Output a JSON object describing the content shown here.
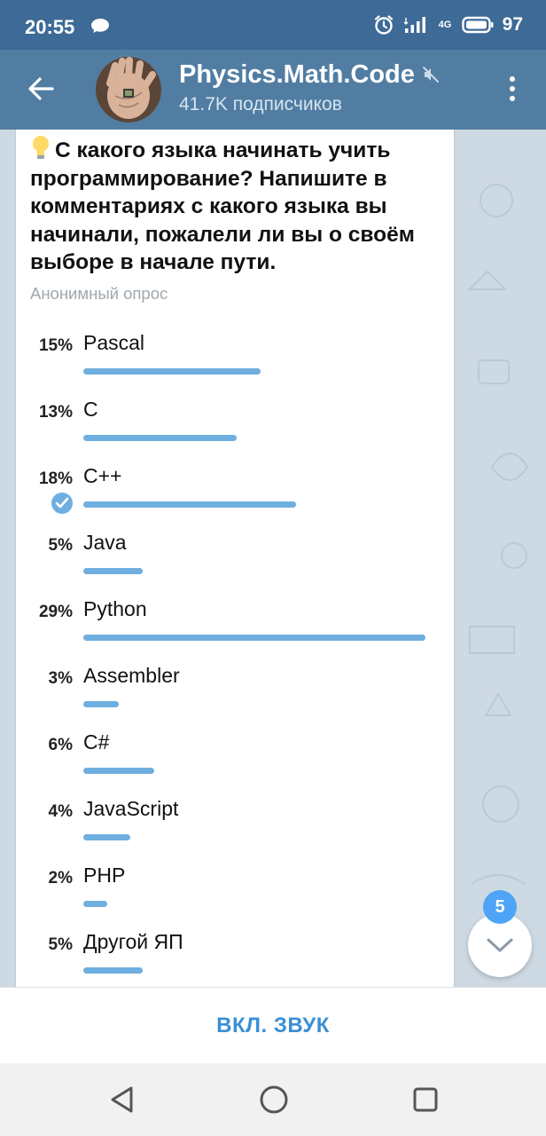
{
  "status_bar": {
    "time": "20:55",
    "network_label": "4G",
    "battery": "97"
  },
  "header": {
    "title": "Physics.Math.Code",
    "subtitle": "41.7K подписчиков"
  },
  "poll": {
    "question": "С какого языка начинать учить программирование? Напишите в комментариях с какого языка вы начинали, пожалели ли вы о своём выборе в начале пути.",
    "type_label": "Анонимный опрос",
    "options": [
      {
        "percent_label": "15%",
        "label": "Pascal",
        "percent": 15,
        "chosen": false
      },
      {
        "percent_label": "13%",
        "label": "C",
        "percent": 13,
        "chosen": false
      },
      {
        "percent_label": "18%",
        "label": "C++",
        "percent": 18,
        "chosen": true
      },
      {
        "percent_label": "5%",
        "label": "Java",
        "percent": 5,
        "chosen": false
      },
      {
        "percent_label": "29%",
        "label": "Python",
        "percent": 29,
        "chosen": false
      },
      {
        "percent_label": "3%",
        "label": "Assembler",
        "percent": 3,
        "chosen": false
      },
      {
        "percent_label": "6%",
        "label": "C#",
        "percent": 6,
        "chosen": false
      },
      {
        "percent_label": "4%",
        "label": "JavaScript",
        "percent": 4,
        "chosen": false
      },
      {
        "percent_label": "2%",
        "label": "PHP",
        "percent": 2,
        "chosen": false
      },
      {
        "percent_label": "5%",
        "label": "Другой ЯП",
        "percent": 5,
        "chosen": false
      }
    ]
  },
  "scroll_fab": {
    "unread_count": "5"
  },
  "bottom_bar": {
    "action_label": "ВКЛ. ЗВУК"
  },
  "colors": {
    "status_bar": "#3d6a96",
    "toolbar": "#517da2",
    "poll_bar": "#6fafe0",
    "badge": "#4ea4f6",
    "action_text": "#3a8fd5"
  },
  "icons": {
    "back": "arrow-left-icon",
    "menu": "more-vertical-icon",
    "mute": "speaker-muted-icon",
    "check": "check-circle-icon",
    "scroll": "chevron-down-icon"
  }
}
